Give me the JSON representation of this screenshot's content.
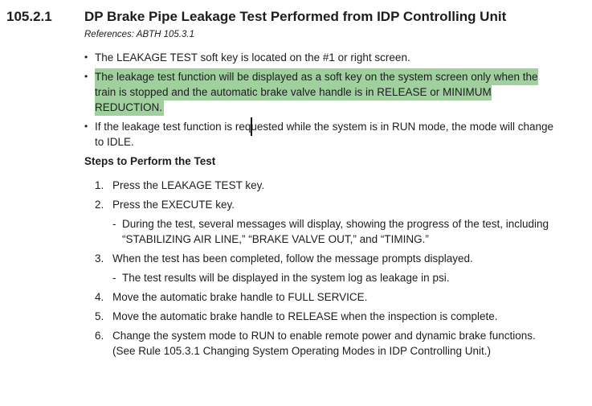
{
  "page": {
    "background": "#ffffff",
    "text_color": "#1d1d1f",
    "highlight_color": "#9fd09e",
    "caret_color": "#111111"
  },
  "section": {
    "number": "105.2.1",
    "title": "DP Brake Pipe Leakage Test Performed from IDP Controlling Unit",
    "references": "References: ABTH 105.3.1"
  },
  "markers": {
    "bullet": "•",
    "dash": "-"
  },
  "bullets": [
    {
      "text": "The LEAKAGE TEST soft key is located on the #1 or right screen."
    },
    {
      "text": "The leakage test function will be displayed as a soft key on the system screen only when the train is stopped and the automatic brake valve handle is in RELEASE or MINIMUM REDUCTION.",
      "highlighted": true
    },
    {
      "text_before_caret": "If the leakage test function is req",
      "text_after_caret": "uested while the system is in RUN mode, the mode will change to IDLE.",
      "has_caret": true
    }
  ],
  "steps_heading": "Steps to Perform the Test",
  "steps": [
    {
      "num": "1.",
      "text": "Press the LEAKAGE TEST key."
    },
    {
      "num": "2.",
      "text": "Press the EXECUTE key.",
      "sub": "During the test, several messages will display, showing the progress of the test, including “STABILIZING AIR LINE,” “BRAKE VALVE OUT,” and “TIMING.”"
    },
    {
      "num": "3.",
      "text": "When the test has been completed, follow the message prompts displayed.",
      "sub": "The test results will be displayed in the system log as leakage in psi."
    },
    {
      "num": "4.",
      "text": "Move the automatic brake handle to FULL SERVICE."
    },
    {
      "num": "5.",
      "text": "Move the automatic brake handle to RELEASE when the inspection is complete."
    },
    {
      "num": "6.",
      "text": "Change the system mode to RUN to enable remote power and dynamic brake functions. (See Rule 105.3.1 Changing System Operating Modes in IDP Controlling Unit.)"
    }
  ]
}
